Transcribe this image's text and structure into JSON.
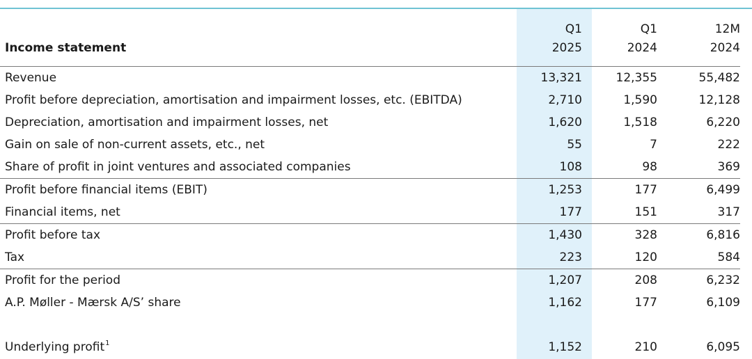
{
  "header": {
    "label": "Income statement",
    "columns": [
      {
        "line1": "Q1",
        "line2": "2025"
      },
      {
        "line1": "Q1",
        "line2": "2024"
      },
      {
        "line1": "12M",
        "line2": "2024"
      }
    ]
  },
  "rows": [
    {
      "label": "Revenue",
      "values": [
        "13,321",
        "12,355",
        "55,482"
      ]
    },
    {
      "label": "Profit before depreciation, amortisation and impairment losses, etc. (EBITDA)",
      "values": [
        "2,710",
        "1,590",
        "12,128"
      ]
    },
    {
      "label": "Depreciation, amortisation and impairment losses, net",
      "values": [
        "1,620",
        "1,518",
        "6,220"
      ]
    },
    {
      "label": "Gain on sale of non-current assets, etc., net",
      "values": [
        "55",
        "7",
        "222"
      ]
    },
    {
      "label": "Share of profit in joint ventures and associated companies",
      "values": [
        "108",
        "98",
        "369"
      ]
    },
    {
      "label": "Profit before financial items (EBIT)",
      "values": [
        "1,253",
        "177",
        "6,499"
      ]
    },
    {
      "label": "Financial items, net",
      "values": [
        "177",
        "151",
        "317"
      ]
    },
    {
      "label": "Profit before tax",
      "values": [
        "1,430",
        "328",
        "6,816"
      ]
    },
    {
      "label": "Tax",
      "values": [
        "223",
        "120",
        "584"
      ]
    },
    {
      "label": "Profit for the period",
      "values": [
        "1,207",
        "208",
        "6,232"
      ]
    },
    {
      "label": "A.P. Møller - Mærsk A/S’ share",
      "values": [
        "1,162",
        "177",
        "6,109"
      ]
    },
    {
      "label": "Underlying profit",
      "footnote": "1",
      "values": [
        "1,152",
        "210",
        "6,095"
      ]
    }
  ],
  "colors": {
    "highlight_column": "#e0f1fa",
    "top_rule": "#6fc3d3",
    "rule": "#7a7a7a"
  }
}
